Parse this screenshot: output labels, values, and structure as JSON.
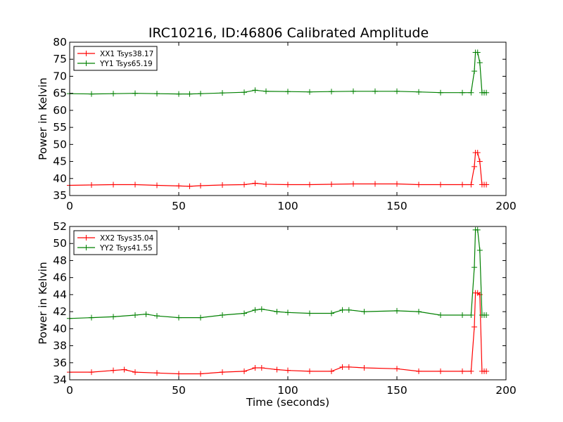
{
  "chart_data": [
    {
      "type": "line",
      "title": "IRC10216, ID:46806 Calibrated Amplitude",
      "xlabel": "",
      "ylabel": "Power in Kelvin",
      "xlim": [
        0,
        200
      ],
      "ylim": [
        35,
        80
      ],
      "xticks": [
        0,
        50,
        100,
        150,
        200
      ],
      "yticks": [
        35,
        40,
        45,
        50,
        55,
        60,
        65,
        70,
        75,
        80
      ],
      "legend_position": "top-left",
      "marker": "+",
      "series": [
        {
          "name": "XX1 Tsys38.17",
          "color": "#ff0000",
          "x": [
            0,
            10,
            20,
            30,
            40,
            50,
            55,
            60,
            70,
            80,
            85,
            90,
            100,
            110,
            120,
            130,
            140,
            150,
            160,
            170,
            180,
            184,
            185.5,
            186,
            187,
            188,
            189,
            190,
            191
          ],
          "y": [
            38.0,
            38.1,
            38.2,
            38.2,
            38.0,
            37.8,
            37.7,
            37.9,
            38.1,
            38.2,
            38.6,
            38.3,
            38.2,
            38.2,
            38.3,
            38.4,
            38.4,
            38.4,
            38.2,
            38.2,
            38.2,
            38.2,
            43.5,
            47.6,
            47.6,
            45.0,
            38.2,
            38.2,
            38.2
          ]
        },
        {
          "name": "YY1 Tsys65.19",
          "color": "#008000",
          "x": [
            0,
            10,
            20,
            30,
            40,
            50,
            55,
            60,
            70,
            80,
            85,
            90,
            100,
            110,
            120,
            130,
            140,
            150,
            160,
            170,
            180,
            184,
            185.5,
            186,
            187,
            188,
            189,
            190,
            191
          ],
          "y": [
            64.9,
            64.8,
            64.9,
            65.0,
            64.9,
            64.8,
            64.8,
            64.9,
            65.1,
            65.3,
            65.9,
            65.6,
            65.5,
            65.4,
            65.5,
            65.6,
            65.6,
            65.6,
            65.4,
            65.2,
            65.2,
            65.2,
            71.5,
            77.0,
            77.0,
            74.0,
            65.2,
            65.2,
            65.2
          ]
        }
      ]
    },
    {
      "type": "line",
      "title": "",
      "xlabel": "Time (seconds)",
      "ylabel": "Power in Kelvin",
      "xlim": [
        0,
        200
      ],
      "ylim": [
        34,
        52
      ],
      "xticks": [
        0,
        50,
        100,
        150,
        200
      ],
      "yticks": [
        34,
        36,
        38,
        40,
        42,
        44,
        46,
        48,
        50,
        52
      ],
      "legend_position": "top-left",
      "marker": "+",
      "series": [
        {
          "name": "XX2 Tsys35.04",
          "color": "#ff0000",
          "x": [
            0,
            10,
            20,
            25,
            30,
            40,
            50,
            60,
            70,
            80,
            85,
            88,
            95,
            100,
            110,
            120,
            125,
            128,
            135,
            150,
            160,
            170,
            180,
            184,
            185.5,
            186,
            187,
            188,
            189,
            190,
            191
          ],
          "y": [
            34.9,
            34.9,
            35.1,
            35.2,
            34.9,
            34.8,
            34.7,
            34.7,
            34.9,
            35.0,
            35.4,
            35.4,
            35.2,
            35.1,
            35.0,
            35.0,
            35.5,
            35.5,
            35.4,
            35.3,
            35.0,
            35.0,
            35.0,
            35.0,
            40.2,
            44.2,
            44.2,
            44.0,
            35.0,
            35.0,
            35.0
          ]
        },
        {
          "name": "YY2 Tsys41.55",
          "color": "#008000",
          "x": [
            0,
            10,
            20,
            30,
            35,
            40,
            50,
            60,
            70,
            80,
            85,
            88,
            95,
            100,
            110,
            120,
            125,
            128,
            135,
            150,
            160,
            170,
            180,
            184,
            185.5,
            186,
            187,
            188,
            189,
            190,
            191
          ],
          "y": [
            41.2,
            41.3,
            41.4,
            41.6,
            41.7,
            41.5,
            41.3,
            41.3,
            41.6,
            41.8,
            42.2,
            42.3,
            42.0,
            41.9,
            41.8,
            41.8,
            42.2,
            42.2,
            42.0,
            42.1,
            42.0,
            41.6,
            41.6,
            41.6,
            47.2,
            51.6,
            51.6,
            49.2,
            41.6,
            41.6,
            41.6
          ]
        }
      ]
    }
  ]
}
